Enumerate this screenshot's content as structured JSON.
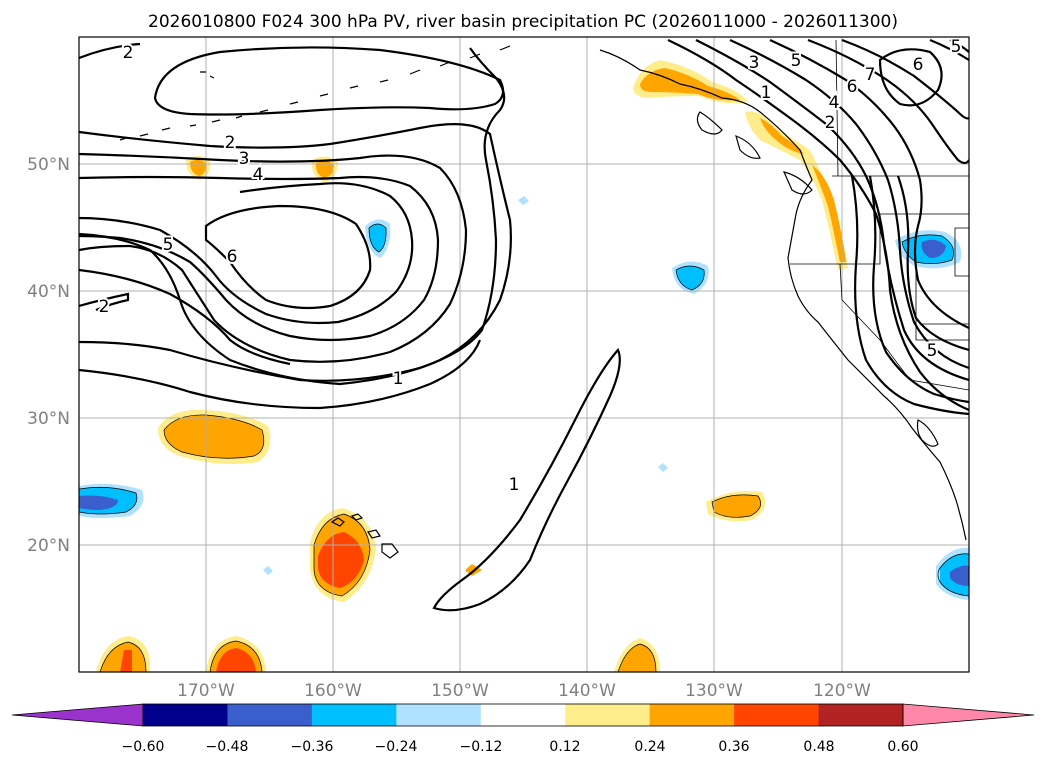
{
  "title": "2026010800 F024 300 hPa PV, river basin precipitation PC (2026011000 - 2026011300)",
  "map": {
    "lat_labels": [
      "50°N",
      "40°N",
      "30°N",
      "20°N"
    ],
    "lat_values": [
      50,
      40,
      30,
      20
    ],
    "lon_labels": [
      "170°W",
      "160°W",
      "150°W",
      "140°W",
      "130°W",
      "120°W"
    ],
    "lon_values": [
      -170,
      -160,
      -150,
      -140,
      -130,
      -120
    ],
    "extent": {
      "lon_min": -180,
      "lon_max": -110,
      "lat_min": 10,
      "lat_max": 60
    },
    "contour_labels": [
      {
        "id": "c2-nw",
        "text": "2"
      },
      {
        "id": "c2-a",
        "text": "2"
      },
      {
        "id": "c3-a",
        "text": "3"
      },
      {
        "id": "c4-a",
        "text": "4"
      },
      {
        "id": "c5-a",
        "text": "5"
      },
      {
        "id": "c6-a",
        "text": "6"
      },
      {
        "id": "c2-w",
        "text": "2"
      },
      {
        "id": "c1-mid",
        "text": "1"
      },
      {
        "id": "c1-s",
        "text": "1"
      },
      {
        "id": "c3-ne",
        "text": "3"
      },
      {
        "id": "c5-ne",
        "text": "5"
      },
      {
        "id": "c1-ne",
        "text": "1"
      },
      {
        "id": "c4-ne",
        "text": "4"
      },
      {
        "id": "c2-ne",
        "text": "2"
      },
      {
        "id": "c6-ne",
        "text": "6"
      },
      {
        "id": "c7-ne",
        "text": "7"
      },
      {
        "id": "c6-ne2",
        "text": "6"
      },
      {
        "id": "c5-ne2",
        "text": "5"
      },
      {
        "id": "c5-e",
        "text": "5"
      }
    ]
  },
  "colorbar": {
    "tick_labels": [
      "−0.60",
      "−0.48",
      "−0.36",
      "−0.24",
      "−0.12",
      "0.12",
      "0.24",
      "0.36",
      "0.48",
      "0.60"
    ],
    "colors": [
      "#9933cc",
      "#00008b",
      "#3a5fcd",
      "#00bfff",
      "#b0e2ff",
      "#ffffff",
      "#ffec8b",
      "#ffa500",
      "#ff4500",
      "#b22222",
      "#ff88aa"
    ]
  }
}
